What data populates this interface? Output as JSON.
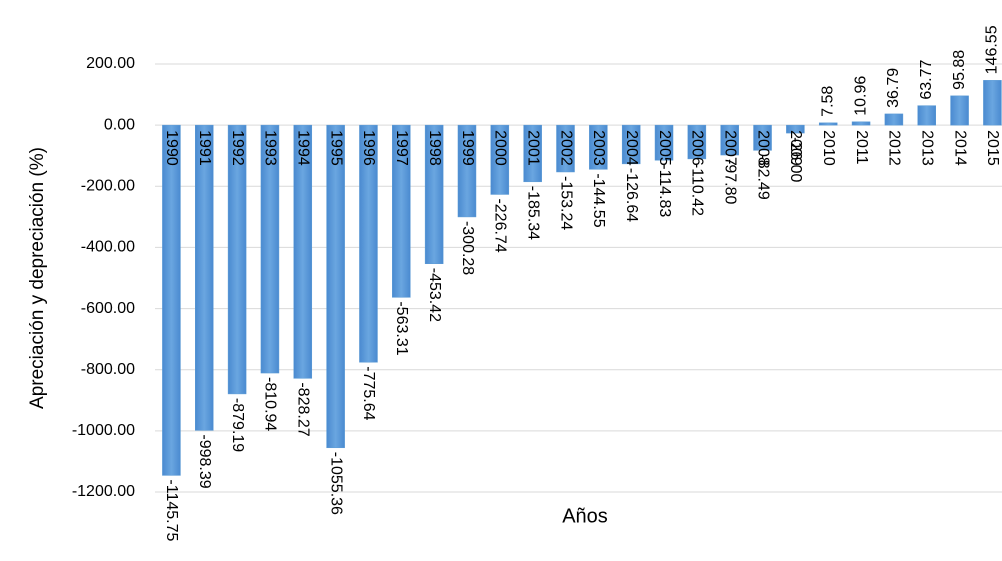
{
  "chart_data": {
    "type": "bar",
    "x_label": "Años",
    "y_label": "Apreciación y depreciación (%)",
    "categories": [
      "1990",
      "1991",
      "1992",
      "1993",
      "1994",
      "1995",
      "1996",
      "1997",
      "1998",
      "1999",
      "2000",
      "2001",
      "2002",
      "2003",
      "2004",
      "2005",
      "2006",
      "2007",
      "2008",
      "2009",
      "2010",
      "2011",
      "2012",
      "2013",
      "2014",
      "2015"
    ],
    "values": [
      -1145.75,
      -998.39,
      -879.19,
      -810.94,
      -828.27,
      -1055.36,
      -775.64,
      -563.31,
      -453.42,
      -300.28,
      -226.74,
      -185.34,
      -153.24,
      -144.55,
      -126.64,
      -114.83,
      -110.42,
      -97.8,
      -82.49,
      -26.0,
      7.58,
      10.96,
      36.79,
      63.77,
      95.88,
      146.55
    ],
    "value_labels": [
      "-1145.75",
      "-998.39",
      "-879.19",
      "-810.94",
      "-828.27",
      "-1055.36",
      "-775.64",
      "-563.31",
      "-453.42",
      "-300.28",
      "-226.74",
      "-185.34",
      "-153.24",
      "-144.55",
      "-126.64",
      "-114.83",
      "-110.42",
      "-97.80",
      "-82.49",
      "-26.00",
      "7.58",
      "10.96",
      "36.79",
      "63.77",
      "95.88",
      "146.55"
    ],
    "color": "#5b9bd5",
    "ylim": [
      -1200,
      200
    ],
    "yticks": [
      {
        "value": 200,
        "label": "200.00"
      },
      {
        "value": 0,
        "label": "0.00"
      },
      {
        "value": -200,
        "label": "-200.00"
      },
      {
        "value": -400,
        "label": "-400.00"
      },
      {
        "value": -600,
        "label": "-600.00"
      },
      {
        "value": -800,
        "label": "-800.00"
      },
      {
        "value": -1000,
        "label": "-1000.00"
      },
      {
        "value": -1200,
        "label": "-1200.00"
      }
    ],
    "grid": true
  }
}
